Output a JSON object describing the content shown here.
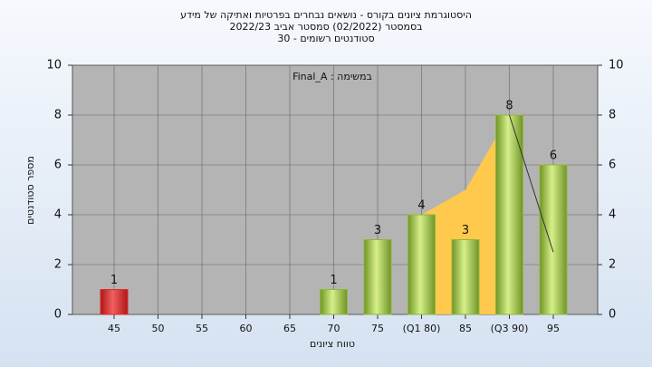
{
  "chart_data": {
    "type": "bar",
    "title": "היסטוגרמת ציונים בקורס - נושאים נבחרים בפרטיות ואתיקה של מידע",
    "subtitle": "בסמסטר  (02/2022)  סמסטר אביב 2022/23",
    "subtitle2": "סטודנטים רשומים - 30",
    "annotation": "Final_A : במשימה",
    "x_label": "טווח ציונים",
    "y_label": "מספר סטודנטים",
    "categories": [
      "45",
      "50",
      "55",
      "60",
      "65",
      "70",
      "75",
      "(Q1 80)",
      "85",
      "(Q3 90)",
      "95"
    ],
    "values": [
      1,
      0,
      0,
      0,
      0,
      1,
      3,
      4,
      3,
      8,
      6
    ],
    "value_labels": [
      "1",
      null,
      null,
      null,
      null,
      "1",
      "3",
      "4",
      "3",
      "8",
      "6"
    ],
    "colors": [
      "#d92b2b",
      "#8fb83a",
      "#8fb83a",
      "#8fb83a",
      "#8fb83a",
      "#8fb83a",
      "#8fb83a",
      "#8fb83a",
      "#8fb83a",
      "#8fb83a",
      "#8fb83a"
    ],
    "area": {
      "color": "#ffc94d",
      "values": [
        null,
        null,
        null,
        null,
        null,
        null,
        null,
        4,
        5,
        8,
        null
      ]
    },
    "line": {
      "color": "#333333",
      "values": [
        null,
        null,
        null,
        null,
        null,
        null,
        null,
        null,
        null,
        8,
        2.5
      ]
    },
    "ylim": [
      0,
      10
    ],
    "yticks": [
      0,
      2,
      4,
      6,
      8,
      10
    ],
    "y2lim": [
      0,
      10
    ],
    "y2ticks": [
      0,
      2,
      4,
      6,
      8,
      10
    ],
    "grid": true
  }
}
